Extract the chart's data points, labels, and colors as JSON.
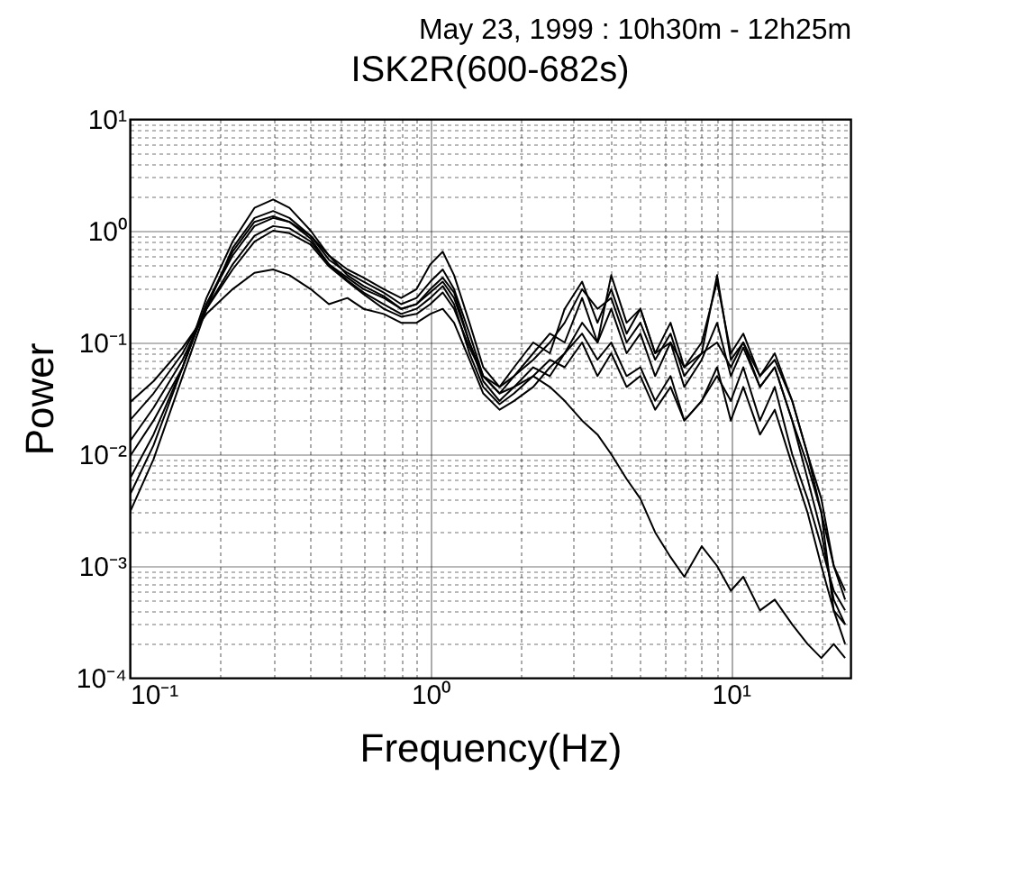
{
  "chart_data": {
    "type": "line",
    "title": "ISK2R(600-682s)",
    "subtitle": "May 23, 1999 : 10h30m - 12h25m",
    "xlabel": "Frequency(Hz)",
    "ylabel": "Power",
    "log": "xy",
    "grid": true,
    "legend": false,
    "xlim": [
      0.1,
      25
    ],
    "ylim": [
      0.0001,
      10
    ],
    "xticks": [
      {
        "value": 0.1,
        "label": "10⁻¹"
      },
      {
        "value": 0.2,
        "label": null
      },
      {
        "value": 0.3,
        "label": null
      },
      {
        "value": 0.4,
        "label": null
      },
      {
        "value": 0.5,
        "label": null
      },
      {
        "value": 0.6,
        "label": null
      },
      {
        "value": 0.7,
        "label": null
      },
      {
        "value": 0.8,
        "label": null
      },
      {
        "value": 0.9,
        "label": null
      },
      {
        "value": 1,
        "label": "10⁰"
      },
      {
        "value": 2,
        "label": null
      },
      {
        "value": 3,
        "label": null
      },
      {
        "value": 4,
        "label": null
      },
      {
        "value": 5,
        "label": null
      },
      {
        "value": 6,
        "label": null
      },
      {
        "value": 7,
        "label": null
      },
      {
        "value": 8,
        "label": null
      },
      {
        "value": 9,
        "label": null
      },
      {
        "value": 10,
        "label": "10¹"
      },
      {
        "value": 20,
        "label": null
      }
    ],
    "yticks": [
      {
        "value": 0.0001,
        "label": "10⁻⁴"
      },
      {
        "value": 0.0002,
        "label": null
      },
      {
        "value": 0.0003,
        "label": null
      },
      {
        "value": 0.0004,
        "label": null
      },
      {
        "value": 0.0005,
        "label": null
      },
      {
        "value": 0.0006,
        "label": null
      },
      {
        "value": 0.0007,
        "label": null
      },
      {
        "value": 0.0008,
        "label": null
      },
      {
        "value": 0.0009,
        "label": null
      },
      {
        "value": 0.001,
        "label": "10⁻³"
      },
      {
        "value": 0.002,
        "label": null
      },
      {
        "value": 0.003,
        "label": null
      },
      {
        "value": 0.004,
        "label": null
      },
      {
        "value": 0.005,
        "label": null
      },
      {
        "value": 0.006,
        "label": null
      },
      {
        "value": 0.007,
        "label": null
      },
      {
        "value": 0.008,
        "label": null
      },
      {
        "value": 0.009,
        "label": null
      },
      {
        "value": 0.01,
        "label": "10⁻²"
      },
      {
        "value": 0.02,
        "label": null
      },
      {
        "value": 0.03,
        "label": null
      },
      {
        "value": 0.04,
        "label": null
      },
      {
        "value": 0.05,
        "label": null
      },
      {
        "value": 0.06,
        "label": null
      },
      {
        "value": 0.07,
        "label": null
      },
      {
        "value": 0.08,
        "label": null
      },
      {
        "value": 0.09,
        "label": null
      },
      {
        "value": 0.1,
        "label": "10⁻¹"
      },
      {
        "value": 0.2,
        "label": null
      },
      {
        "value": 0.3,
        "label": null
      },
      {
        "value": 0.4,
        "label": null
      },
      {
        "value": 0.5,
        "label": null
      },
      {
        "value": 0.6,
        "label": null
      },
      {
        "value": 0.7,
        "label": null
      },
      {
        "value": 0.8,
        "label": null
      },
      {
        "value": 0.9,
        "label": null
      },
      {
        "value": 1,
        "label": "10⁰"
      },
      {
        "value": 2,
        "label": null
      },
      {
        "value": 3,
        "label": null
      },
      {
        "value": 4,
        "label": null
      },
      {
        "value": 5,
        "label": null
      },
      {
        "value": 6,
        "label": null
      },
      {
        "value": 7,
        "label": null
      },
      {
        "value": 8,
        "label": null
      },
      {
        "value": 9,
        "label": null
      },
      {
        "value": 10,
        "label": "10¹"
      }
    ],
    "x": [
      0.1,
      0.12,
      0.15,
      0.18,
      0.22,
      0.26,
      0.3,
      0.34,
      0.4,
      0.46,
      0.53,
      0.6,
      0.7,
      0.8,
      0.9,
      1.0,
      1.1,
      1.2,
      1.35,
      1.5,
      1.7,
      1.9,
      2.2,
      2.5,
      2.8,
      3.2,
      3.6,
      4.0,
      4.5,
      5,
      5.6,
      6.3,
      7,
      8,
      9,
      10,
      11,
      12.5,
      14,
      16,
      18,
      20,
      22,
      24
    ],
    "series": [
      {
        "color": "#000000",
        "values": [
          0.0043,
          0.012,
          0.06,
          0.25,
          0.8,
          1.6,
          1.9,
          1.6,
          1.0,
          0.6,
          0.45,
          0.38,
          0.3,
          0.25,
          0.3,
          0.5,
          0.65,
          0.4,
          0.15,
          0.06,
          0.04,
          0.06,
          0.1,
          0.08,
          0.2,
          0.35,
          0.15,
          0.3,
          0.12,
          0.2,
          0.08,
          0.15,
          0.06,
          0.1,
          0.35,
          0.08,
          0.12,
          0.05,
          0.08,
          0.03,
          0.01,
          0.003,
          0.0004,
          0.0002
        ]
      },
      {
        "color": "#000000",
        "values": [
          0.003,
          0.009,
          0.05,
          0.2,
          0.7,
          1.3,
          1.5,
          1.3,
          0.9,
          0.55,
          0.42,
          0.35,
          0.28,
          0.22,
          0.25,
          0.35,
          0.45,
          0.3,
          0.12,
          0.05,
          0.035,
          0.05,
          0.08,
          0.12,
          0.1,
          0.25,
          0.1,
          0.2,
          0.08,
          0.12,
          0.05,
          0.1,
          0.04,
          0.07,
          0.15,
          0.05,
          0.09,
          0.04,
          0.06,
          0.02,
          0.006,
          0.002,
          0.0005,
          0.0003
        ]
      },
      {
        "color": "#000000",
        "values": [
          0.0095,
          0.02,
          0.06,
          0.22,
          0.6,
          1.1,
          1.3,
          1.2,
          0.85,
          0.5,
          0.38,
          0.3,
          0.25,
          0.2,
          0.22,
          0.3,
          0.38,
          0.28,
          0.1,
          0.045,
          0.03,
          0.04,
          0.06,
          0.05,
          0.08,
          0.12,
          0.07,
          0.1,
          0.05,
          0.06,
          0.03,
          0.05,
          0.02,
          0.03,
          0.06,
          0.02,
          0.04,
          0.015,
          0.025,
          0.008,
          0.003,
          0.001,
          0.0004,
          0.0003
        ]
      },
      {
        "color": "#000000",
        "values": [
          0.013,
          0.026,
          0.07,
          0.2,
          0.5,
          0.9,
          1.1,
          1.05,
          0.8,
          0.5,
          0.36,
          0.28,
          0.22,
          0.18,
          0.2,
          0.25,
          0.32,
          0.22,
          0.08,
          0.04,
          0.028,
          0.035,
          0.05,
          0.07,
          0.06,
          0.1,
          0.05,
          0.08,
          0.04,
          0.05,
          0.025,
          0.04,
          0.02,
          0.03,
          0.05,
          0.03,
          0.06,
          0.02,
          0.04,
          0.01,
          0.004,
          0.0015,
          0.0006,
          0.0004
        ]
      },
      {
        "color": "#000000",
        "values": [
          0.02,
          0.035,
          0.08,
          0.2,
          0.45,
          0.8,
          1.0,
          0.95,
          0.75,
          0.48,
          0.35,
          0.27,
          0.2,
          0.17,
          0.18,
          0.22,
          0.28,
          0.2,
          0.09,
          0.05,
          0.04,
          0.05,
          0.07,
          0.1,
          0.15,
          0.3,
          0.2,
          0.25,
          0.1,
          0.15,
          0.07,
          0.12,
          0.05,
          0.08,
          0.1,
          0.06,
          0.1,
          0.04,
          0.06,
          0.02,
          0.008,
          0.003,
          0.001,
          0.0006
        ]
      },
      {
        "color": "#000000",
        "values": [
          0.029,
          0.045,
          0.09,
          0.18,
          0.3,
          0.42,
          0.45,
          0.4,
          0.3,
          0.22,
          0.25,
          0.2,
          0.18,
          0.15,
          0.15,
          0.18,
          0.2,
          0.15,
          0.07,
          0.035,
          0.025,
          0.03,
          0.04,
          0.06,
          0.08,
          0.15,
          0.1,
          0.4,
          0.15,
          0.2,
          0.08,
          0.1,
          0.06,
          0.08,
          0.4,
          0.07,
          0.1,
          0.05,
          0.07,
          0.03,
          0.01,
          0.004,
          0.001,
          0.0005
        ]
      },
      {
        "color": "#000000",
        "values": [
          0.006,
          0.015,
          0.06,
          0.22,
          0.65,
          1.2,
          1.35,
          1.2,
          0.9,
          0.6,
          0.4,
          0.32,
          0.26,
          0.2,
          0.22,
          0.28,
          0.35,
          0.25,
          0.1,
          0.05,
          0.035,
          0.04,
          0.05,
          0.04,
          0.03,
          0.02,
          0.015,
          0.01,
          0.006,
          0.004,
          0.002,
          0.0012,
          0.0008,
          0.0015,
          0.001,
          0.0006,
          0.0008,
          0.0004,
          0.0005,
          0.0003,
          0.0002,
          0.00015,
          0.0002,
          0.00015
        ]
      }
    ]
  }
}
